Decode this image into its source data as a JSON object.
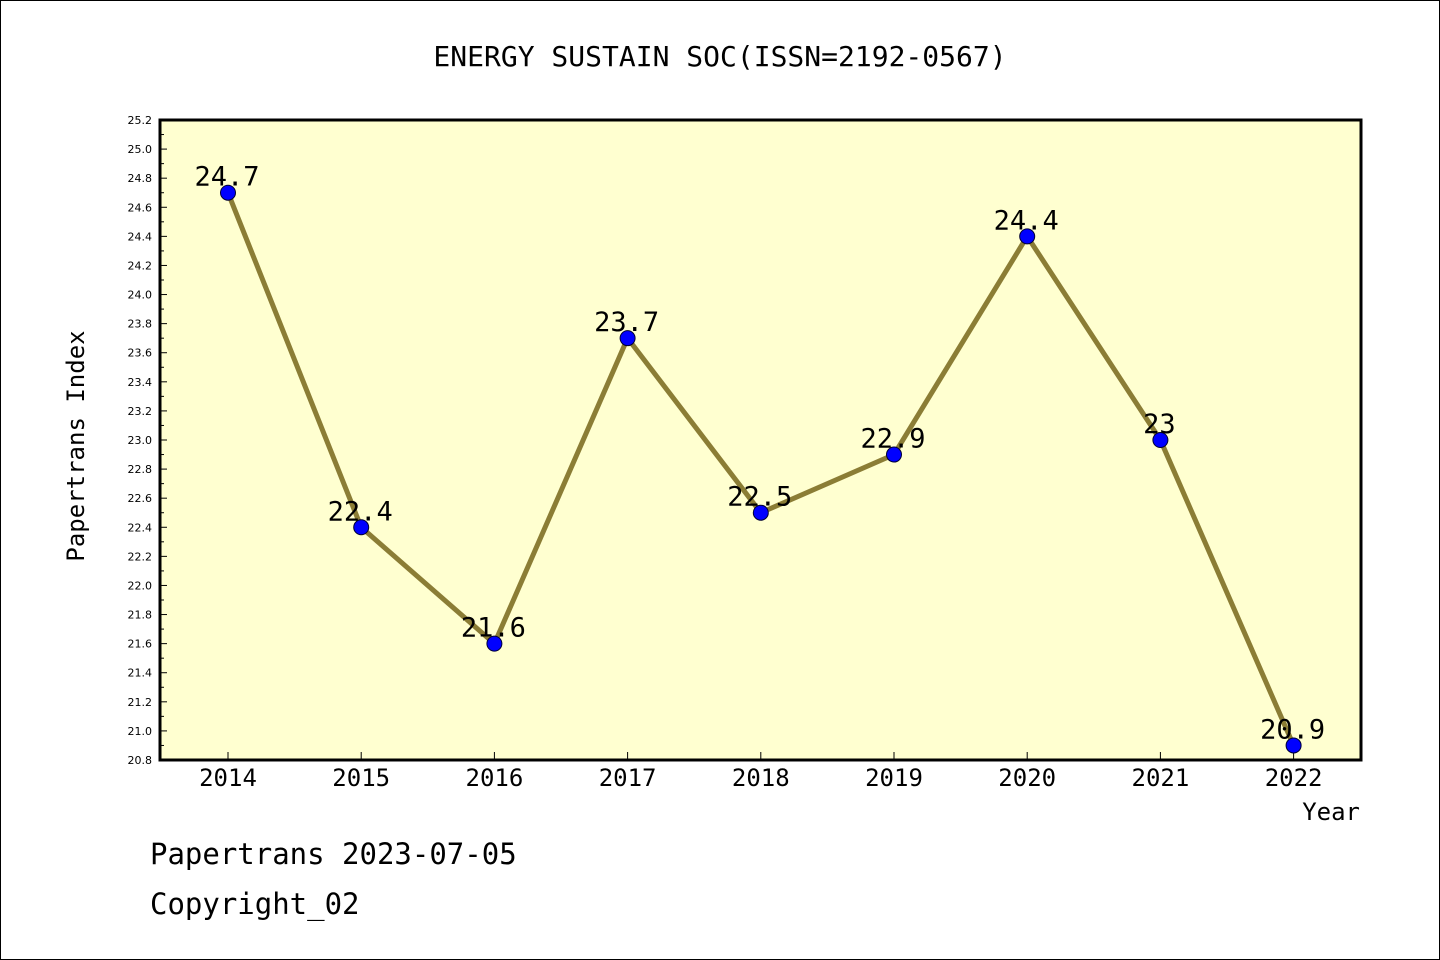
{
  "chart_data": {
    "type": "line",
    "title": "ENERGY SUSTAIN SOC(ISSN=2192-0567)",
    "xlabel": "Year",
    "ylabel": "Papertrans Index",
    "x": [
      "2014",
      "2015",
      "2016",
      "2017",
      "2018",
      "2019",
      "2020",
      "2021",
      "2022"
    ],
    "series": [
      {
        "values": [
          24.7,
          22.4,
          21.6,
          23.7,
          22.5,
          22.9,
          24.4,
          23.0,
          20.9
        ]
      }
    ],
    "data_labels": [
      "24.7",
      "22.4",
      "21.6",
      "23.7",
      "22.5",
      "22.9",
      "24.4",
      "23",
      "20.9"
    ],
    "ylim": [
      20.8,
      25.2
    ],
    "yticks": [
      "20.8",
      "21.0",
      "21.2",
      "21.4",
      "21.6",
      "21.8",
      "22.0",
      "22.2",
      "22.4",
      "22.6",
      "22.8",
      "23.0",
      "23.2",
      "23.4",
      "23.6",
      "23.8",
      "24.0",
      "24.2",
      "24.4",
      "24.6",
      "24.8",
      "25.0",
      "25.2"
    ],
    "grid": false,
    "colors": {
      "plot_background": "#ffffd0",
      "line": "#8b7d35",
      "marker": "#0000ff"
    }
  },
  "footer": {
    "date_line": "Papertrans 2023-07-05",
    "copyright": "Copyright_02"
  }
}
